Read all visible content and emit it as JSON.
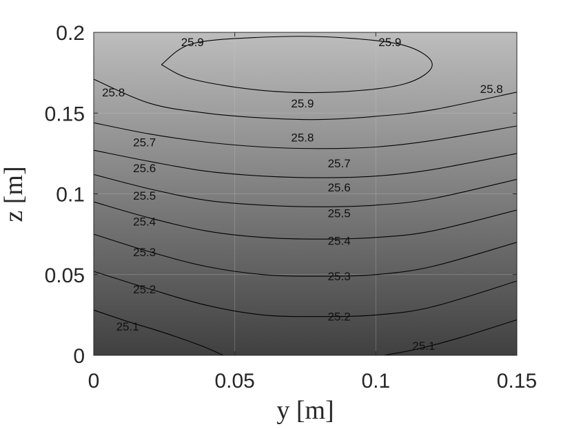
{
  "chart_data": {
    "type": "contour",
    "title": "",
    "xlabel": "y [m]",
    "ylabel": "z [m]",
    "xlim": [
      0,
      0.15
    ],
    "ylim": [
      0,
      0.2
    ],
    "xticks": [
      0,
      0.05,
      0.1,
      0.15
    ],
    "xtick_labels": [
      "0",
      "0.05",
      "0.1",
      "0.15"
    ],
    "yticks": [
      0,
      0.05,
      0.1,
      0.15,
      0.2
    ],
    "ytick_labels": [
      "0",
      "0.05",
      "0.1",
      "0.15",
      "0.2"
    ],
    "grid": true,
    "colormap": "gray",
    "fill_color_low": "#404040",
    "fill_color_high": "#bdbdbd",
    "levels": [
      25.1,
      25.2,
      25.3,
      25.4,
      25.5,
      25.6,
      25.7,
      25.8,
      25.9
    ],
    "contours": [
      {
        "level": 25.1,
        "label": "25.1",
        "x": [
          0,
          0.012,
          0.025,
          0.038,
          0.046
        ],
        "y": [
          0.028,
          0.021,
          0.014,
          0.006,
          0
        ],
        "label_x": 0.012,
        "label_y": 0.018
      },
      {
        "level": 25.1,
        "label": "25.1",
        "x": [
          0.103,
          0.115,
          0.13,
          0.15
        ],
        "y": [
          0,
          0.004,
          0.011,
          0.022
        ],
        "label_x": 0.117,
        "label_y": 0.006
      },
      {
        "level": 25.2,
        "label": "25.2",
        "x": [
          0,
          0.02,
          0.04,
          0.06,
          0.08,
          0.1,
          0.12,
          0.15
        ],
        "y": [
          0.052,
          0.041,
          0.031,
          0.025,
          0.024,
          0.025,
          0.03,
          0.046
        ],
        "label_x": 0.087,
        "label_y": 0.024
      },
      {
        "level": 25.3,
        "label": "25.3",
        "x": [
          0,
          0.02,
          0.04,
          0.06,
          0.08,
          0.1,
          0.12,
          0.15
        ],
        "y": [
          0.075,
          0.064,
          0.055,
          0.05,
          0.049,
          0.05,
          0.055,
          0.07
        ],
        "label_x": 0.087,
        "label_y": 0.049
      },
      {
        "level": 25.4,
        "label": "25.4",
        "x": [
          0,
          0.02,
          0.04,
          0.06,
          0.08,
          0.1,
          0.12,
          0.15
        ],
        "y": [
          0.095,
          0.085,
          0.077,
          0.073,
          0.072,
          0.073,
          0.077,
          0.09
        ],
        "label_x": 0.087,
        "label_y": 0.071
      },
      {
        "level": 25.5,
        "label": "25.5",
        "x": [
          0,
          0.02,
          0.04,
          0.06,
          0.08,
          0.1,
          0.12,
          0.15
        ],
        "y": [
          0.112,
          0.103,
          0.096,
          0.093,
          0.092,
          0.093,
          0.097,
          0.109
        ],
        "label_x": 0.087,
        "label_y": 0.088
      },
      {
        "level": 25.6,
        "label": "25.6",
        "x": [
          0,
          0.02,
          0.04,
          0.06,
          0.08,
          0.1,
          0.12,
          0.15
        ],
        "y": [
          0.127,
          0.12,
          0.114,
          0.111,
          0.11,
          0.111,
          0.115,
          0.125
        ],
        "label_x": 0.087,
        "label_y": 0.104
      },
      {
        "level": 25.7,
        "label": "25.7",
        "x": [
          0,
          0.02,
          0.04,
          0.06,
          0.08,
          0.1,
          0.12,
          0.15
        ],
        "y": [
          0.144,
          0.137,
          0.132,
          0.129,
          0.128,
          0.129,
          0.133,
          0.142
        ],
        "label_x": 0.087,
        "label_y": 0.119
      },
      {
        "level": 25.8,
        "label": "25.8",
        "x": [
          0,
          0.02,
          0.04,
          0.06,
          0.08,
          0.1,
          0.12,
          0.15
        ],
        "y": [
          0.171,
          0.156,
          0.15,
          0.147,
          0.146,
          0.148,
          0.152,
          0.163
        ],
        "label_x": 0.074,
        "label_y": 0.135
      },
      {
        "level": 25.9,
        "label": "25.9",
        "x": [
          0.024,
          0.035,
          0.06,
          0.085,
          0.11,
          0.12,
          0.11,
          0.085,
          0.06,
          0.035,
          0.024
        ],
        "y": [
          0.18,
          0.171,
          0.164,
          0.163,
          0.168,
          0.18,
          0.192,
          0.197,
          0.197,
          0.193,
          0.18
        ],
        "label_x": 0.074,
        "label_y": 0.156
      }
    ],
    "extra_labels": [
      {
        "label": "25.9",
        "x": 0.035,
        "y": 0.194
      },
      {
        "label": "25.9",
        "x": 0.105,
        "y": 0.194
      },
      {
        "label": "25.8",
        "x": 0.007,
        "y": 0.163
      },
      {
        "label": "25.8",
        "x": 0.141,
        "y": 0.165
      },
      {
        "label": "25.7",
        "x": 0.018,
        "y": 0.132
      },
      {
        "label": "25.6",
        "x": 0.018,
        "y": 0.116
      },
      {
        "label": "25.5",
        "x": 0.018,
        "y": 0.099
      },
      {
        "label": "25.4",
        "x": 0.018,
        "y": 0.083
      },
      {
        "label": "25.3",
        "x": 0.018,
        "y": 0.064
      },
      {
        "label": "25.2",
        "x": 0.018,
        "y": 0.041
      }
    ]
  }
}
